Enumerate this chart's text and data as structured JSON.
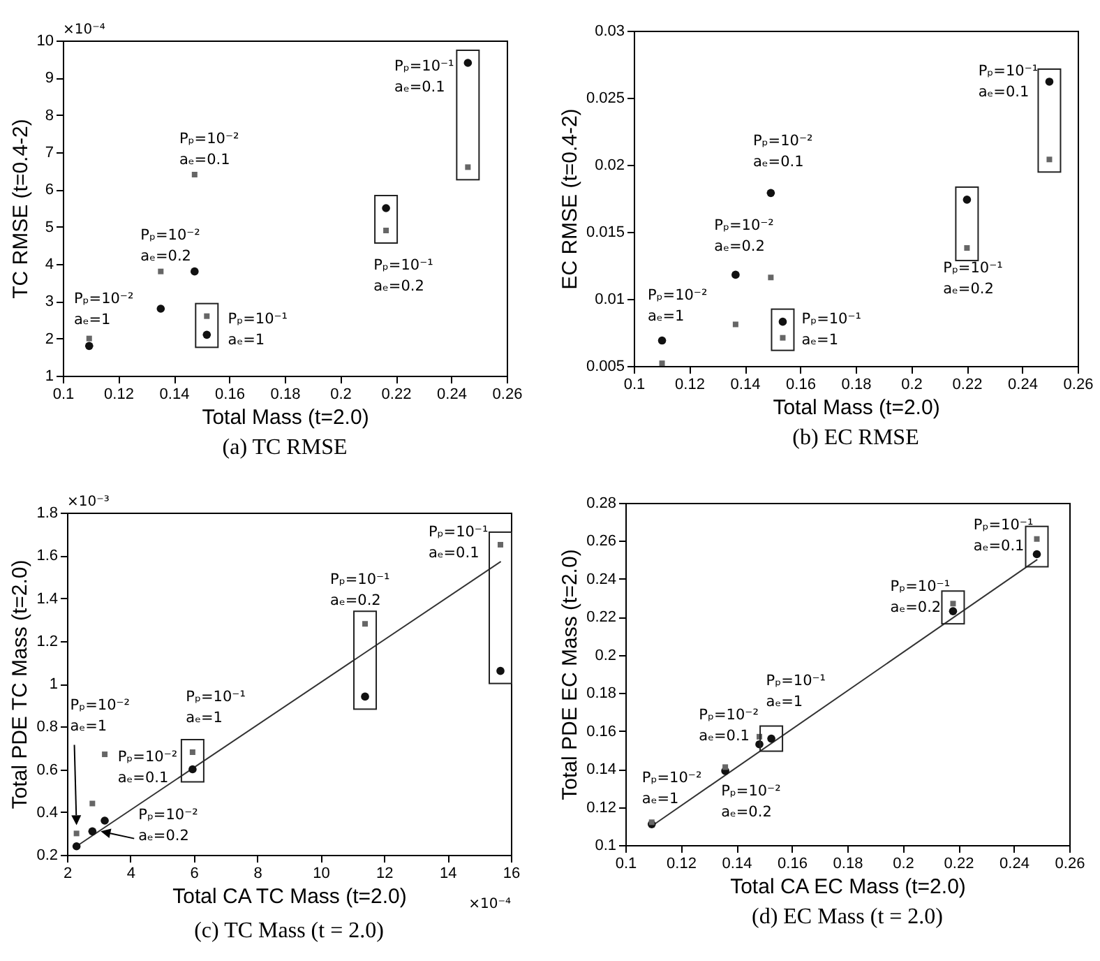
{
  "chart_data": [
    {
      "type": "scatter",
      "title": "(a) TC RMSE",
      "xlabel": "Total Mass (t=2.0)",
      "ylabel": "TC RMSE (t=0.4-2)",
      "xlim": [
        0.1,
        0.26
      ],
      "ylim": [
        1,
        10
      ],
      "xticks": [
        0.1,
        0.12,
        0.14,
        0.16,
        0.18,
        0.2,
        0.22,
        0.24,
        0.26
      ],
      "yticks": [
        1,
        2,
        3,
        4,
        5,
        6,
        7,
        8,
        9,
        10
      ],
      "x": [
        0.1095,
        0.1353,
        0.1475,
        0.1519,
        0.2165,
        0.246
      ],
      "series": [
        {
          "color": "#111111",
          "marker": "circle",
          "values": [
            1.8,
            2.8,
            3.8,
            2.1,
            5.5,
            9.4
          ]
        },
        {
          "color": "#666666",
          "marker": "square",
          "values": [
            2.0,
            3.8,
            6.4,
            2.6,
            4.9,
            6.6
          ]
        }
      ],
      "annotations": [
        "×10⁻⁴",
        "Pₚ=10⁻²\naₑ=1",
        "Pₚ=10⁻²\naₑ=0.2",
        "Pₚ=10⁻²\naₑ=0.1",
        "Pₚ=10⁻¹\naₑ=1",
        "Pₚ=10⁻¹\naₑ=0.2",
        "Pₚ=10⁻¹\naₑ=0.1"
      ]
    },
    {
      "type": "scatter",
      "title": "(b) EC RMSE",
      "xlabel": "Total Mass (t=2.0)",
      "ylabel": "EC RMSE (t=0.4-2)",
      "xlim": [
        0.1,
        0.26
      ],
      "ylim": [
        0.005,
        0.03
      ],
      "xticks": [
        0.1,
        0.12,
        0.14,
        0.16,
        0.18,
        0.2,
        0.22,
        0.24,
        0.26
      ],
      "yticks": [
        0.005,
        0.01,
        0.015,
        0.02,
        0.025,
        0.03
      ],
      "x": [
        0.1102,
        0.1367,
        0.1494,
        0.1537,
        0.2201,
        0.2498
      ],
      "series": [
        {
          "color": "#111111",
          "marker": "circle",
          "values": [
            0.0069,
            0.0118,
            0.0179,
            0.0083,
            0.0174,
            0.0262
          ]
        },
        {
          "color": "#666666",
          "marker": "square",
          "values": [
            0.0052,
            0.0081,
            0.0116,
            0.0071,
            0.0138,
            0.0204
          ]
        }
      ],
      "annotations": [
        "Pₚ=10⁻²\naₑ=1",
        "Pₚ=10⁻²\naₑ=0.2",
        "Pₚ=10⁻²\naₑ=0.1",
        "Pₚ=10⁻¹\naₑ=1",
        "Pₚ=10⁻¹\naₑ=0.2",
        "Pₚ=10⁻¹\naₑ=0.1"
      ]
    },
    {
      "type": "scatter",
      "title": "(c) TC Mass (t = 2.0)",
      "xlabel": "Total CA TC Mass (t=2.0)",
      "ylabel": "Total PDE TC Mass (t=2.0)",
      "xlim": [
        2,
        16
      ],
      "ylim": [
        0.2,
        1.8
      ],
      "xticks": [
        2,
        4,
        6,
        8,
        10,
        12,
        14,
        16
      ],
      "yticks": [
        0.2,
        0.4,
        0.6,
        0.8,
        1,
        1.2,
        1.4,
        1.6,
        1.8
      ],
      "x": [
        2.3,
        2.8,
        3.19,
        5.96,
        11.4,
        15.67
      ],
      "series": [
        {
          "color": "#111111",
          "marker": "circle",
          "values": [
            0.24,
            0.31,
            0.36,
            0.6,
            0.94,
            1.06
          ]
        },
        {
          "color": "#666666",
          "marker": "square",
          "values": [
            0.3,
            0.44,
            0.67,
            0.68,
            1.28,
            1.65
          ]
        },
        {
          "type": "line",
          "color": "#333333",
          "x": [
            2.3,
            15.67
          ],
          "values": [
            0.24,
            1.57
          ]
        }
      ],
      "annotations": [
        "×10⁻³",
        "×10⁻⁴",
        "Pₚ=10⁻²\naₑ=1",
        "Pₚ=10⁻²\naₑ=0.1",
        "Pₚ=10⁻²\naₑ=0.2",
        "Pₚ=10⁻¹\naₑ=1",
        "Pₚ=10⁻¹\naₑ=0.2",
        "Pₚ=10⁻¹\naₑ=0.1"
      ]
    },
    {
      "type": "scatter",
      "title": "(d) EC Mass (t = 2.0)",
      "xlabel": "Total CA EC Mass (t=2.0)",
      "ylabel": "Total PDE EC Mass (t=2.0)",
      "xlim": [
        0.1,
        0.26
      ],
      "ylim": [
        0.1,
        0.28
      ],
      "xticks": [
        0.1,
        0.12,
        0.14,
        0.16,
        0.18,
        0.2,
        0.22,
        0.24,
        0.26
      ],
      "yticks": [
        0.1,
        0.12,
        0.14,
        0.16,
        0.18,
        0.2,
        0.22,
        0.24,
        0.26,
        0.28
      ],
      "x": [
        0.1095,
        0.136,
        0.1483,
        0.1526,
        0.2181,
        0.2483
      ],
      "series": [
        {
          "color": "#111111",
          "marker": "circle",
          "values": [
            0.111,
            0.139,
            0.153,
            0.156,
            0.223,
            0.253
          ]
        },
        {
          "color": "#666666",
          "marker": "square",
          "values": [
            0.112,
            0.141,
            0.157,
            null,
            0.227,
            0.261
          ]
        },
        {
          "type": "line",
          "color": "#333333",
          "x": [
            0.1095,
            0.2483
          ],
          "values": [
            0.11,
            0.25
          ]
        }
      ],
      "annotations": [
        "Pₚ=10⁻²\naₑ=1",
        "Pₚ=10⁻²\naₑ=0.1",
        "Pₚ=10⁻²\naₑ=0.2",
        "Pₚ=10⁻¹\naₑ=1",
        "Pₚ=10⁻¹\naₑ=0.2",
        "Pₚ=10⁻¹\naₑ=0.1"
      ]
    }
  ]
}
